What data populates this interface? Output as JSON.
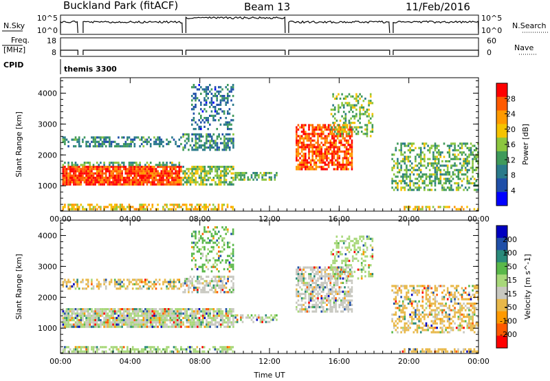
{
  "header": {
    "station": "Buckland Park (fitACF)",
    "beam": "Beam 13",
    "date": "11/Feb/2016"
  },
  "top_panels": {
    "nsky_label": "N.Sky",
    "nsky_ticks": [
      "10^5",
      "10^0"
    ],
    "nsearch_label": "N.Search",
    "nsearch_ticks": [
      "10^5",
      "10^0"
    ],
    "freq_label_1": "Freq.",
    "freq_label_2": "[MHz]",
    "freq_ticks": [
      "18",
      "8"
    ],
    "nave_label": "Nave",
    "nave_ticks": [
      "60",
      "0"
    ],
    "cpid_label": "CPID",
    "cpid_value": "themis 3300"
  },
  "colors": {
    "power_scale": [
      "#0000ff",
      "#1f4fa8",
      "#2a7a8a",
      "#3f9a5a",
      "#8cc63f",
      "#f5c300",
      "#ff9a00",
      "#ff5a00",
      "#ff0000"
    ],
    "velocity_scale": [
      "#0000c0",
      "#1f4fa8",
      "#2a8a7a",
      "#5ab84a",
      "#a8d87a",
      "#c8c8c0",
      "#e8b84a",
      "#ff9a00",
      "#ff5a00",
      "#ff0000"
    ],
    "ground_gray": "#c0c0b8"
  },
  "chart_data": [
    {
      "type": "heatmap",
      "name": "power",
      "xlabel": "Time UT",
      "ylabel": "Slant Range [km]",
      "colorbar_label": "Power [dB]",
      "x_ticks": [
        "00:00",
        "04:00",
        "08:00",
        "12:00",
        "16:00",
        "20:00",
        "00:00"
      ],
      "xlim": [
        0,
        24
      ],
      "y_ticks": [
        1000,
        2000,
        3000,
        4000
      ],
      "ylim": [
        180,
        4500
      ],
      "colorbar_ticks": [
        4,
        8,
        12,
        16,
        20,
        24,
        28
      ],
      "colorbar_range": [
        0,
        32
      ],
      "echo_regions": [
        {
          "t0": 0.1,
          "t1": 7.0,
          "r0": 1000,
          "r1": 1650,
          "level": 28,
          "density": 0.92
        },
        {
          "t0": 0.1,
          "t1": 7.0,
          "r0": 1650,
          "r1": 1780,
          "level": 13,
          "density": 0.5
        },
        {
          "t0": 0.1,
          "t1": 7.0,
          "r0": 2250,
          "r1": 2600,
          "level": 10,
          "density": 0.5
        },
        {
          "t0": 0.1,
          "t1": 10.0,
          "r0": 190,
          "r1": 420,
          "level": 20,
          "density": 0.55
        },
        {
          "t0": 7.0,
          "t1": 10.0,
          "r0": 1000,
          "r1": 1650,
          "level": 15,
          "density": 0.75
        },
        {
          "t0": 7.0,
          "t1": 10.0,
          "r0": 2100,
          "r1": 2700,
          "level": 10,
          "density": 0.55
        },
        {
          "t0": 7.5,
          "t1": 10.0,
          "r0": 2800,
          "r1": 4300,
          "level": 8,
          "density": 0.35
        },
        {
          "t0": 10.0,
          "t1": 12.5,
          "r0": 1150,
          "r1": 1450,
          "level": 14,
          "density": 0.55
        },
        {
          "t0": 13.5,
          "t1": 16.8,
          "r0": 1500,
          "r1": 3000,
          "level": 27,
          "density": 0.7
        },
        {
          "t0": 15.5,
          "t1": 18.0,
          "r0": 2600,
          "r1": 4000,
          "level": 15,
          "density": 0.35
        },
        {
          "t0": 19.0,
          "t1": 24.0,
          "r0": 800,
          "r1": 2400,
          "level": 14,
          "density": 0.45
        },
        {
          "t0": 19.5,
          "t1": 24.0,
          "r0": 190,
          "r1": 350,
          "level": 20,
          "density": 0.5
        }
      ]
    },
    {
      "type": "heatmap",
      "name": "velocity",
      "xlabel": "Time UT",
      "ylabel": "Slant Range [km]",
      "colorbar_label": "Velocity [m s^-1]",
      "x_ticks": [
        "00:00",
        "04:00",
        "08:00",
        "12:00",
        "16:00",
        "20:00",
        "00:00"
      ],
      "xlim": [
        0,
        24
      ],
      "y_ticks": [
        1000,
        2000,
        3000,
        4000
      ],
      "ylim": [
        180,
        4500
      ],
      "colorbar_ticks": [
        200,
        100,
        50,
        15,
        -15,
        -50,
        -100,
        -200
      ],
      "colorbar_range": [
        -250,
        250
      ],
      "echo_regions": [
        {
          "t0": 0.1,
          "t1": 7.0,
          "r0": 1000,
          "r1": 1650,
          "level": 0,
          "density": 0.9
        },
        {
          "t0": 0.1,
          "t1": 7.0,
          "r0": 2250,
          "r1": 2600,
          "level": -60,
          "density": 0.5
        },
        {
          "t0": 0.1,
          "t1": 10.0,
          "r0": 190,
          "r1": 420,
          "level": 30,
          "density": 0.55
        },
        {
          "t0": 7.0,
          "t1": 10.0,
          "r0": 1000,
          "r1": 1650,
          "level": 0,
          "density": 0.75
        },
        {
          "t0": 7.0,
          "t1": 10.0,
          "r0": 2100,
          "r1": 2700,
          "level": -40,
          "density": 0.55
        },
        {
          "t0": 7.5,
          "t1": 10.0,
          "r0": 2800,
          "r1": 4300,
          "level": 60,
          "density": 0.35
        },
        {
          "t0": 10.0,
          "t1": 12.5,
          "r0": 1150,
          "r1": 1450,
          "level": 0,
          "density": 0.55
        },
        {
          "t0": 13.5,
          "t1": 16.8,
          "r0": 1500,
          "r1": 3000,
          "level": -20,
          "density": 0.65
        },
        {
          "t0": 15.5,
          "t1": 18.0,
          "r0": 2600,
          "r1": 4000,
          "level": 30,
          "density": 0.35
        },
        {
          "t0": 19.0,
          "t1": 24.0,
          "r0": 800,
          "r1": 2400,
          "level": -60,
          "density": 0.45
        },
        {
          "t0": 19.5,
          "t1": 24.0,
          "r0": 190,
          "r1": 350,
          "level": -60,
          "density": 0.5
        }
      ]
    }
  ]
}
